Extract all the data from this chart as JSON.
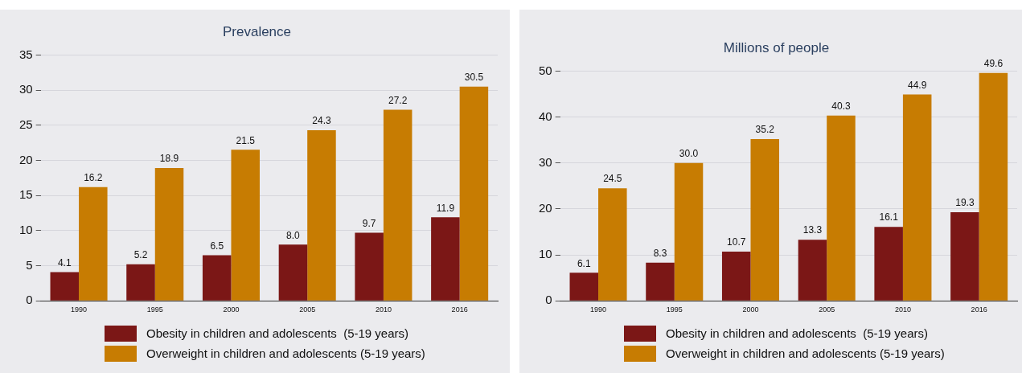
{
  "chart_data": [
    {
      "type": "bar",
      "title": "Prevalence",
      "categories": [
        "1990",
        "1995",
        "2000",
        "2005",
        "2010",
        "2016"
      ],
      "series": [
        {
          "name": "Obesity in children and adolescents  (5-19 years)",
          "color": "#7b1716",
          "values": [
            4.1,
            5.2,
            6.5,
            8.0,
            9.7,
            11.9
          ],
          "value_labels": [
            "4.1",
            "5.2",
            "6.5",
            "8.0",
            "9.7",
            "11.9"
          ]
        },
        {
          "name": "Overweight in children and adolescents (5-19 years)",
          "color": "#c77c02",
          "values": [
            16.2,
            18.9,
            21.5,
            24.3,
            27.2,
            30.5
          ],
          "value_labels": [
            "16.2",
            "18.9",
            "21.5",
            "24.3",
            "27.2",
            "30.5"
          ]
        }
      ],
      "ylim": [
        0,
        35
      ],
      "yticks": [
        0,
        5,
        10,
        15,
        20,
        25,
        30,
        35
      ],
      "grid": "y",
      "legend": "bottom"
    },
    {
      "type": "bar",
      "title": "Millions of people",
      "categories": [
        "1990",
        "1995",
        "2000",
        "2005",
        "2010",
        "2016"
      ],
      "series": [
        {
          "name": "Obesity in children and adolescents  (5-19 years)",
          "color": "#7b1716",
          "values": [
            6.1,
            8.3,
            10.7,
            13.3,
            16.1,
            19.3
          ],
          "value_labels": [
            "6.1",
            "8.3",
            "10.7",
            "13.3",
            "16.1",
            "19.3"
          ]
        },
        {
          "name": "Overweight in children and adolescents (5-19 years)",
          "color": "#c77c02",
          "values": [
            24.5,
            30.0,
            35.2,
            40.3,
            44.9,
            49.6
          ],
          "value_labels": [
            "24.5",
            "30.0",
            "35.2",
            "40.3",
            "44.9",
            "49.6"
          ]
        }
      ],
      "ylim": [
        0,
        50
      ],
      "yticks": [
        0,
        10,
        20,
        30,
        40,
        50
      ],
      "grid": "y",
      "legend": "bottom"
    }
  ]
}
